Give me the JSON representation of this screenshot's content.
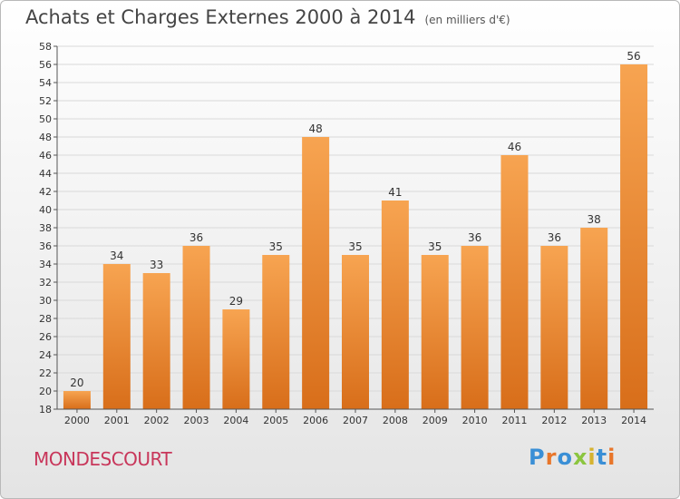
{
  "header": {
    "title": "Achats et Charges Externes 2000 à 2014",
    "subtitle": "(en milliers d'€)"
  },
  "commune": "MONDESCOURT",
  "logo": {
    "text": "Proxiti",
    "colors": [
      "#3a8fd6",
      "#e8762a",
      "#3a8fd6",
      "#8bc53f",
      "#d6b330",
      "#3a8fd6",
      "#e8762a"
    ]
  },
  "colors": {
    "bar_top": "#f7a451",
    "bar_bottom": "#d86e1a",
    "grid": "#d9d9d9",
    "axis": "#555555",
    "label": "#333333"
  },
  "chart_data": {
    "type": "bar",
    "title": "Achats et Charges Externes 2000 à 2014",
    "subtitle": "(en milliers d'€)",
    "categories": [
      "2000",
      "2001",
      "2002",
      "2003",
      "2004",
      "2005",
      "2006",
      "2007",
      "2008",
      "2009",
      "2010",
      "2011",
      "2012",
      "2013",
      "2014"
    ],
    "values": [
      20,
      34,
      33,
      36,
      29,
      35,
      48,
      35,
      41,
      35,
      36,
      46,
      36,
      38,
      56
    ],
    "ylim": [
      18,
      58
    ],
    "ytick_step": 2,
    "grid": true,
    "data_labels": true
  }
}
